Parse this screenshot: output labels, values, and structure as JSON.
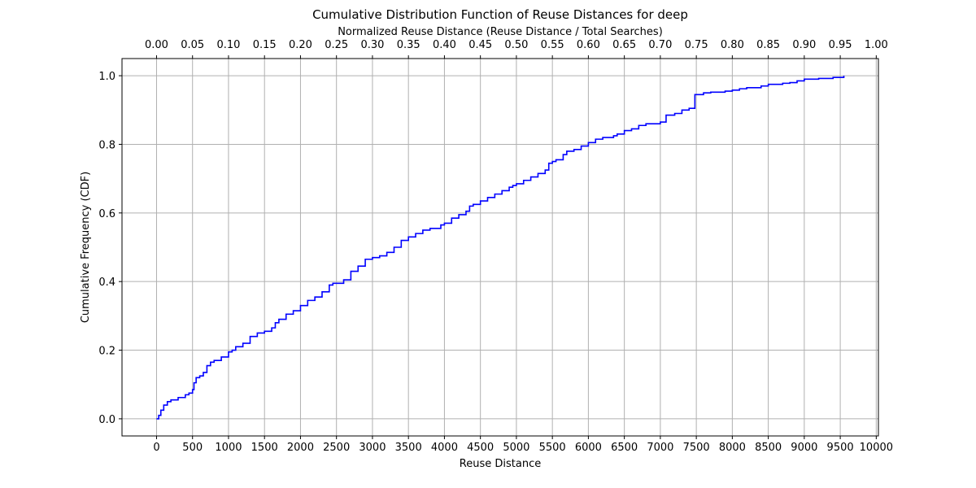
{
  "chart_data": {
    "type": "line",
    "title": "Cumulative Distribution Function of Reuse Distances for deep",
    "xlabel": "Reuse Distance",
    "ylabel": "Cumulative Frequency (CDF)",
    "top_xlabel": "Normalized Reuse Distance (Reuse Distance / Total Searches)",
    "xlim": [
      -480,
      10030
    ],
    "ylim": [
      -0.05,
      1.05
    ],
    "x_ticks": [
      0,
      500,
      1000,
      1500,
      2000,
      2500,
      3000,
      3500,
      4000,
      4500,
      5000,
      5500,
      6000,
      6500,
      7000,
      7500,
      8000,
      8500,
      9000,
      9500,
      10000
    ],
    "x_tick_labels": [
      "0",
      "500",
      "1000",
      "1500",
      "2000",
      "2500",
      "3000",
      "3500",
      "4000",
      "4500",
      "5000",
      "5500",
      "6000",
      "6500",
      "7000",
      "7500",
      "8000",
      "8500",
      "9000",
      "9500",
      "10000"
    ],
    "y_ticks": [
      0,
      0.2,
      0.4,
      0.6,
      0.8,
      1.0
    ],
    "y_tick_labels": [
      "0.0",
      "0.2",
      "0.4",
      "0.6",
      "0.8",
      "1.0"
    ],
    "top_ticks": [
      0,
      0.05,
      0.1,
      0.15,
      0.2,
      0.25,
      0.3,
      0.35,
      0.4,
      0.45,
      0.5,
      0.55,
      0.6,
      0.65,
      0.7,
      0.75,
      0.8,
      0.85,
      0.9,
      0.95,
      1.0
    ],
    "top_tick_labels": [
      "0.00",
      "0.05",
      "0.10",
      "0.15",
      "0.20",
      "0.25",
      "0.30",
      "0.35",
      "0.40",
      "0.45",
      "0.50",
      "0.55",
      "0.60",
      "0.65",
      "0.70",
      "0.75",
      "0.80",
      "0.85",
      "0.90",
      "0.95",
      "1.00"
    ],
    "total_searches": 10000,
    "grid": true,
    "series": [
      {
        "color": "#0000ff",
        "x": [
          0,
          30,
          60,
          100,
          150,
          200,
          300,
          400,
          450,
          500,
          520,
          550,
          600,
          650,
          700,
          750,
          800,
          900,
          1000,
          1050,
          1100,
          1200,
          1300,
          1400,
          1500,
          1600,
          1650,
          1700,
          1800,
          1900,
          2000,
          2100,
          2200,
          2300,
          2400,
          2450,
          2600,
          2700,
          2800,
          2900,
          3000,
          3100,
          3200,
          3300,
          3400,
          3500,
          3600,
          3700,
          3800,
          3950,
          4000,
          4100,
          4200,
          4300,
          4350,
          4400,
          4500,
          4600,
          4700,
          4800,
          4900,
          4950,
          5000,
          5100,
          5200,
          5300,
          5400,
          5450,
          5500,
          5550,
          5650,
          5700,
          5800,
          5900,
          6000,
          6100,
          6200,
          6350,
          6400,
          6500,
          6600,
          6700,
          6800,
          7000,
          7080,
          7100,
          7200,
          7300,
          7400,
          7470,
          7480,
          7600,
          7700,
          7900,
          8000,
          8100,
          8200,
          8400,
          8500,
          8700,
          8800,
          8900,
          9000,
          9200,
          9400,
          9550
        ],
        "y": [
          0.0,
          0.01,
          0.025,
          0.04,
          0.05,
          0.055,
          0.062,
          0.07,
          0.075,
          0.085,
          0.105,
          0.12,
          0.125,
          0.135,
          0.155,
          0.165,
          0.17,
          0.18,
          0.195,
          0.2,
          0.21,
          0.22,
          0.24,
          0.25,
          0.255,
          0.265,
          0.28,
          0.29,
          0.305,
          0.315,
          0.33,
          0.345,
          0.355,
          0.37,
          0.39,
          0.395,
          0.405,
          0.43,
          0.445,
          0.465,
          0.47,
          0.475,
          0.485,
          0.5,
          0.52,
          0.53,
          0.54,
          0.55,
          0.555,
          0.565,
          0.57,
          0.585,
          0.595,
          0.605,
          0.62,
          0.625,
          0.635,
          0.645,
          0.655,
          0.665,
          0.675,
          0.68,
          0.685,
          0.695,
          0.705,
          0.715,
          0.725,
          0.745,
          0.75,
          0.755,
          0.77,
          0.78,
          0.785,
          0.795,
          0.805,
          0.815,
          0.82,
          0.825,
          0.83,
          0.84,
          0.845,
          0.855,
          0.86,
          0.865,
          0.885,
          0.885,
          0.89,
          0.9,
          0.905,
          0.905,
          0.945,
          0.95,
          0.952,
          0.955,
          0.958,
          0.962,
          0.965,
          0.97,
          0.975,
          0.978,
          0.98,
          0.985,
          0.99,
          0.992,
          0.995,
          1.0
        ]
      }
    ]
  }
}
